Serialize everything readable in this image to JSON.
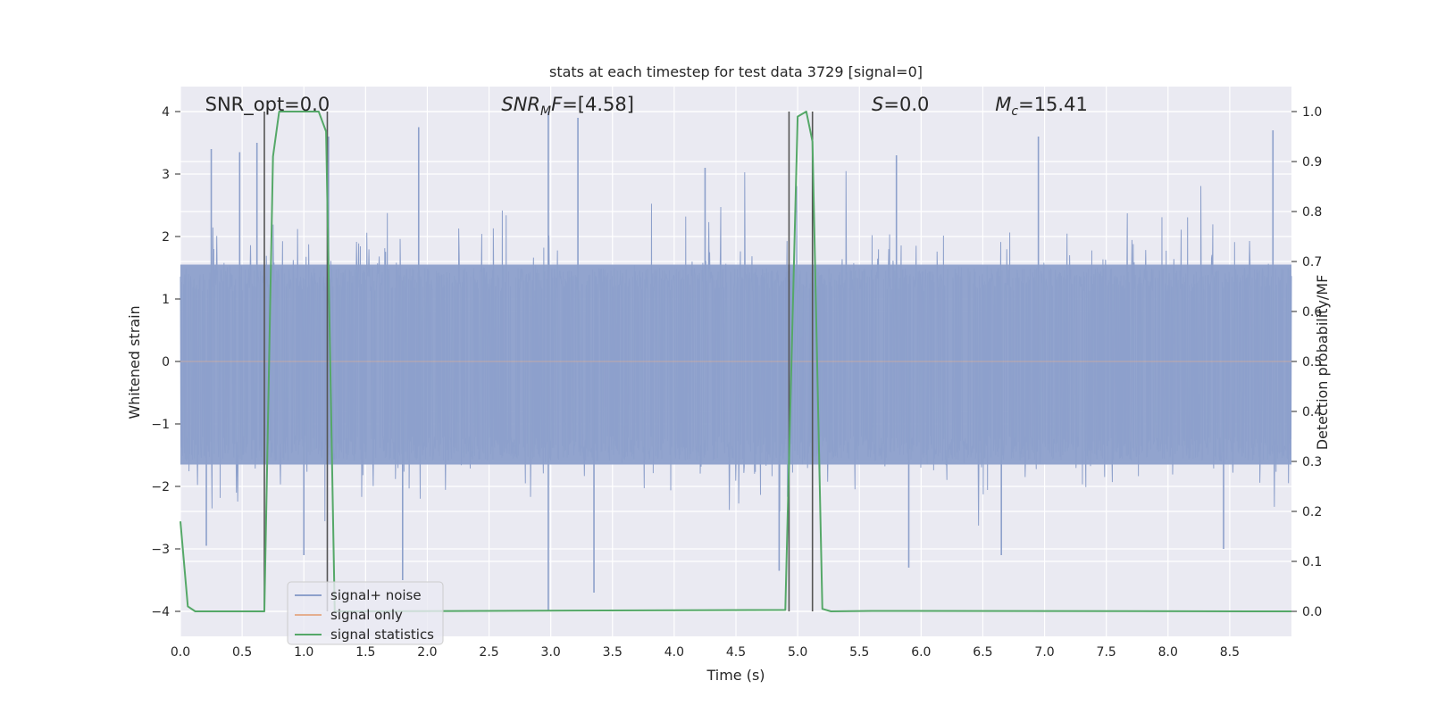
{
  "chart_data": {
    "type": "line",
    "title": "stats at each timestep for test data 3729 [signal=0]",
    "xlabel": "Time (s)",
    "ylabel_left": "Whitened strain",
    "ylabel_right": "Detection probability/MF",
    "xlim": [
      0,
      9.0
    ],
    "ylim_left": [
      -4.4,
      4.4
    ],
    "ylim_right": [
      -0.05,
      1.05
    ],
    "x_ticks": [
      0.0,
      0.5,
      1.0,
      1.5,
      2.0,
      2.5,
      3.0,
      3.5,
      4.0,
      4.5,
      5.0,
      5.5,
      6.0,
      6.5,
      7.0,
      7.5,
      8.0,
      8.5
    ],
    "x_tick_labels": [
      "0.0",
      "0.5",
      "1.0",
      "1.5",
      "2.0",
      "2.5",
      "3.0",
      "3.5",
      "4.0",
      "4.5",
      "5.0",
      "5.5",
      "6.0",
      "6.5",
      "7.0",
      "7.5",
      "8.0",
      "8.5"
    ],
    "y_left_ticks": [
      -4,
      -3,
      -2,
      -1,
      0,
      1,
      2,
      3,
      4
    ],
    "y_left_tick_labels": [
      "−4",
      "−3",
      "−2",
      "−1",
      "0",
      "1",
      "2",
      "3",
      "4"
    ],
    "y_right_ticks": [
      0.0,
      0.1,
      0.2,
      0.3,
      0.4,
      0.5,
      0.6,
      0.7,
      0.8,
      0.9,
      1.0
    ],
    "y_right_tick_labels": [
      "0.0",
      "0.1",
      "0.2",
      "0.3",
      "0.4",
      "0.5",
      "0.6",
      "0.7",
      "0.8",
      "0.9",
      "1.0"
    ],
    "grid": true,
    "legend_position": "lower-left",
    "annotations": [
      {
        "html": "SNR_opt=0.0",
        "x": 0.2
      },
      {
        "html": "<tspan font-style=\"italic\">SNR</tspan><tspan font-style=\"italic\" font-size=\"14\" dy=\"5\">M</tspan><tspan font-style=\"italic\" dy=\"-5\">F</tspan>=[4.58]",
        "x": 2.6
      },
      {
        "html": "<tspan font-style=\"italic\">S</tspan>=0.0",
        "x": 5.6
      },
      {
        "html": "<tspan font-style=\"italic\">M</tspan><tspan font-style=\"italic\" font-size=\"14\" dy=\"5\">c</tspan><tspan dy=\"-5\">=15.41</tspan>",
        "x": 6.6
      }
    ],
    "series": [
      {
        "name": "signal+ noise",
        "color": "#8da0cb",
        "axis": "left",
        "description": "whitened strain noise, amplitude roughly within [-2, 2] with spikes to about +/-4",
        "typical_envelope": [
          -1.7,
          1.6
        ],
        "spikes": [
          {
            "x": 0.25,
            "y": 3.4
          },
          {
            "x": 0.48,
            "y": 3.35
          },
          {
            "x": 0.62,
            "y": 3.5
          },
          {
            "x": 1.2,
            "y": 3.6
          },
          {
            "x": 1.93,
            "y": 3.75
          },
          {
            "x": 2.98,
            "y": 4.0
          },
          {
            "x": 3.22,
            "y": 3.9
          },
          {
            "x": 4.25,
            "y": 3.1
          },
          {
            "x": 5.8,
            "y": 3.3
          },
          {
            "x": 6.95,
            "y": 3.6
          },
          {
            "x": 8.85,
            "y": 3.7
          },
          {
            "x": 0.21,
            "y": -2.95
          },
          {
            "x": 1.0,
            "y": -3.1
          },
          {
            "x": 1.8,
            "y": -3.5
          },
          {
            "x": 2.98,
            "y": -4.0
          },
          {
            "x": 3.35,
            "y": -3.7
          },
          {
            "x": 4.85,
            "y": -3.35
          },
          {
            "x": 5.9,
            "y": -3.3
          },
          {
            "x": 6.65,
            "y": -3.1
          },
          {
            "x": 8.45,
            "y": -3.0
          }
        ]
      },
      {
        "name": "signal only",
        "color": "#e5ae8f",
        "axis": "left",
        "x": [
          0.0,
          9.0
        ],
        "y": [
          0,
          0
        ]
      },
      {
        "name": "signal statistics",
        "color": "#55a868",
        "axis": "right",
        "x": [
          0.0,
          0.06,
          0.12,
          0.68,
          0.75,
          0.8,
          1.12,
          1.18,
          1.25,
          1.32,
          4.9,
          4.95,
          5.0,
          5.07,
          5.12,
          5.2,
          5.27,
          5.6,
          9.0
        ],
        "y": [
          0.18,
          0.01,
          0.0,
          0.0,
          0.91,
          1.0,
          1.0,
          0.96,
          0.0,
          0.0,
          0.003,
          0.5,
          0.99,
          1.0,
          0.94,
          0.005,
          0.0,
          0.001,
          0.0
        ]
      }
    ],
    "vertical_lines": [
      0.68,
      1.19,
      4.93,
      5.12
    ]
  }
}
